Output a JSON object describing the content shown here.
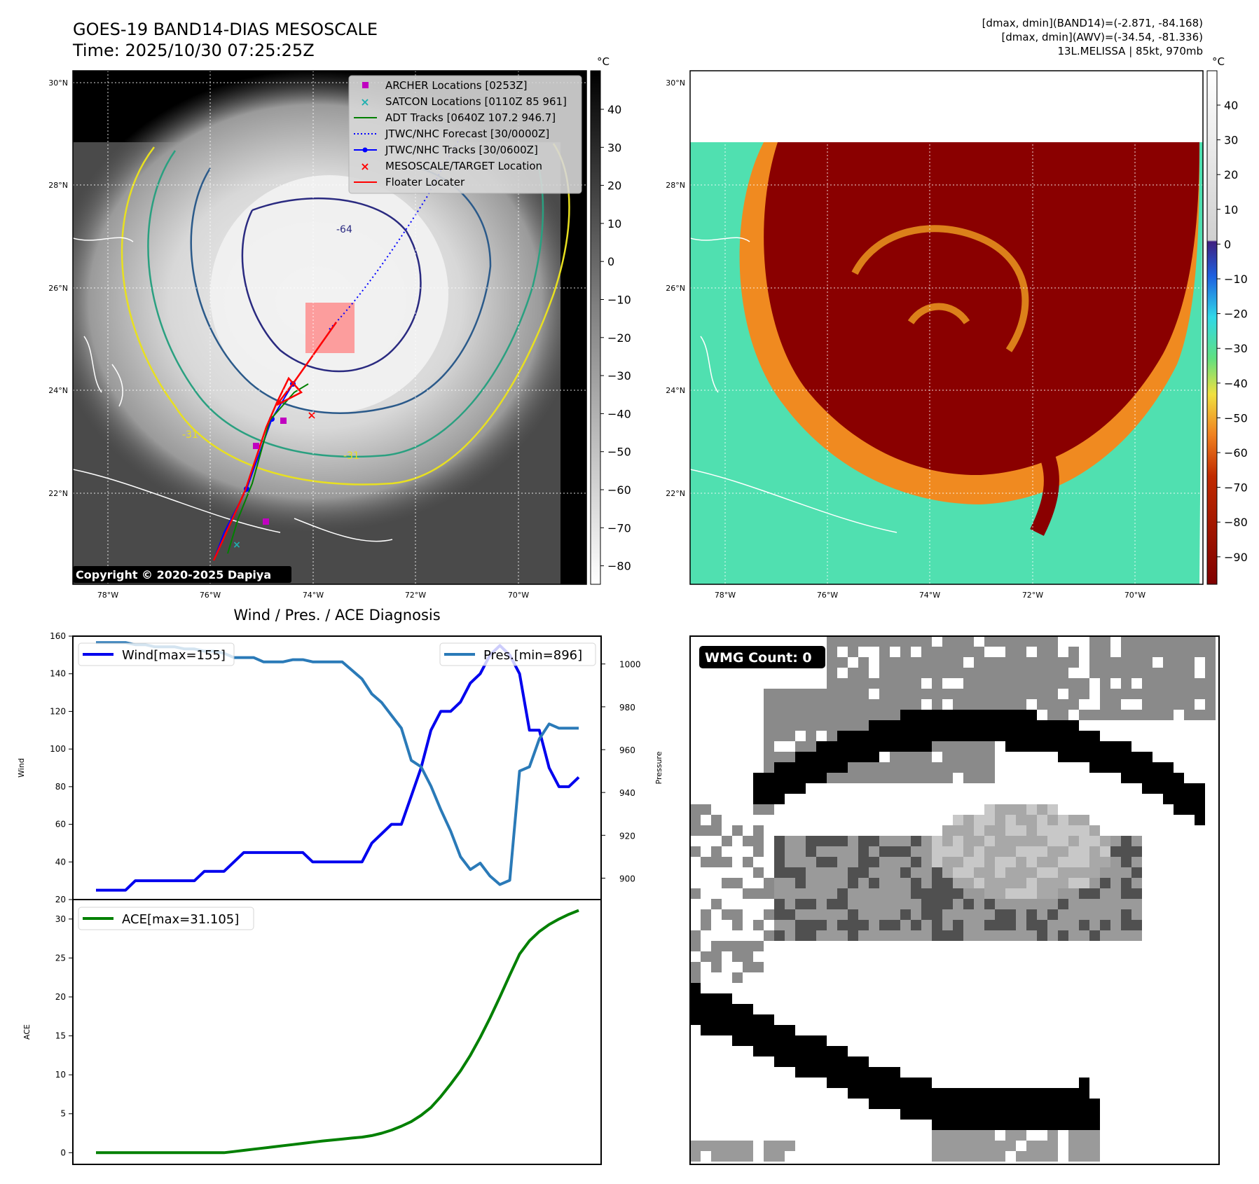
{
  "header": {
    "title_line1": "GOES-19 BAND14-DIAS MESOSCALE",
    "title_line2": "Time: 2025/10/30 07:25:25Z",
    "info_line1": "[dmax, dmin](BAND14)=(-2.871, -84.168)",
    "info_line2": "[dmax, dmin](AWV)=(-34.54, -81.336)",
    "info_line3": "13L.MELISSA | 85kt, 970mb"
  },
  "map_axes": {
    "lat_labels": [
      "30°N",
      "28°N",
      "26°N",
      "24°N",
      "22°N"
    ],
    "lon_labels": [
      "78°W",
      "76°W",
      "74°W",
      "72°W",
      "70°W"
    ],
    "copyright": "Copyright © 2020-2025 Dapiya",
    "contour_labels": [
      "-64",
      "-31",
      "-31"
    ]
  },
  "legend": [
    {
      "label": "ARCHER Locations [0253Z]",
      "color": "#c000c0",
      "kind": "square"
    },
    {
      "label": "SATCON Locations [0110Z 85 961]",
      "color": "#20b0b0",
      "kind": "x"
    },
    {
      "label": "ADT Tracks [0640Z 107.2 946.7]",
      "color": "#008000",
      "kind": "line"
    },
    {
      "label": "JTWC/NHC Forecast [30/0000Z]",
      "color": "#0000ff",
      "kind": "dotted"
    },
    {
      "label": "JTWC/NHC Tracks [30/0600Z]",
      "color": "#0000ff",
      "kind": "line-dot"
    },
    {
      "label": "MESOSCALE/TARGET Location",
      "color": "#ff0000",
      "kind": "x"
    },
    {
      "label": "Floater Locater",
      "color": "#ff0000",
      "kind": "line"
    }
  ],
  "colorbar_left": {
    "unit": "°C",
    "ticks": [
      "40",
      "30",
      "20",
      "10",
      "0",
      "−10",
      "−20",
      "−30",
      "−40",
      "−50",
      "−60",
      "−70",
      "−80"
    ]
  },
  "colorbar_right": {
    "unit": "°C",
    "ticks": [
      "40",
      "30",
      "20",
      "10",
      "0",
      "−10",
      "−20",
      "−30",
      "−40",
      "−50",
      "−60",
      "−70",
      "−80",
      "−90"
    ]
  },
  "wmg": {
    "label": "WMG Count: 0"
  },
  "chart_data": [
    {
      "type": "line",
      "title": "Wind / Pres. / ACE Diagnosis",
      "ylabel": "Wind",
      "y2label": "Pressure",
      "ylim": [
        20,
        160
      ],
      "y2lim": [
        890,
        1013
      ],
      "yticks": [
        20,
        40,
        60,
        80,
        100,
        120,
        140,
        160
      ],
      "y2ticks": [
        900,
        920,
        940,
        960,
        980,
        1000
      ],
      "series": [
        {
          "name": "Wind[max=155]",
          "color": "#0000ee",
          "axis": "left",
          "values": [
            25,
            25,
            25,
            25,
            30,
            30,
            30,
            30,
            30,
            30,
            30,
            35,
            35,
            35,
            40,
            45,
            45,
            45,
            45,
            45,
            45,
            45,
            40,
            40,
            40,
            40,
            40,
            40,
            50,
            55,
            60,
            60,
            75,
            90,
            110,
            120,
            120,
            125,
            135,
            140,
            150,
            155,
            150,
            140,
            110,
            110,
            90,
            80,
            80,
            85
          ]
        },
        {
          "name": "Pres.[min=896]",
          "color": "#2a7ab8",
          "axis": "right",
          "values": [
            1010,
            1010,
            1010,
            1010,
            1009,
            1009,
            1008,
            1008,
            1008,
            1007,
            1007,
            1006,
            1006,
            1005,
            1003,
            1003,
            1003,
            1001,
            1001,
            1001,
            1002,
            1002,
            1001,
            1001,
            1001,
            1001,
            997,
            993,
            986,
            982,
            976,
            970,
            955,
            952,
            943,
            932,
            922,
            910,
            904,
            907,
            901,
            897,
            899,
            950,
            952,
            965,
            972,
            970,
            970,
            970
          ]
        }
      ]
    },
    {
      "type": "line",
      "ylabel": "ACE",
      "ylim": [
        -1.5,
        32.5
      ],
      "yticks": [
        0,
        5,
        10,
        15,
        20,
        25,
        30
      ],
      "series": [
        {
          "name": "ACE[max=31.105]",
          "color": "#008000",
          "values": [
            0,
            0,
            0,
            0,
            0,
            0,
            0,
            0,
            0,
            0,
            0,
            0,
            0,
            0.0,
            0.15,
            0.3,
            0.45,
            0.6,
            0.75,
            0.9,
            1.05,
            1.2,
            1.35,
            1.5,
            1.62,
            1.75,
            1.88,
            2.0,
            2.2,
            2.5,
            2.9,
            3.4,
            4.0,
            4.8,
            5.8,
            7.2,
            8.8,
            10.5,
            12.5,
            14.8,
            17.3,
            20.0,
            22.8,
            25.5,
            27.2,
            28.4,
            29.3,
            30.0,
            30.6,
            31.105
          ]
        }
      ]
    }
  ]
}
